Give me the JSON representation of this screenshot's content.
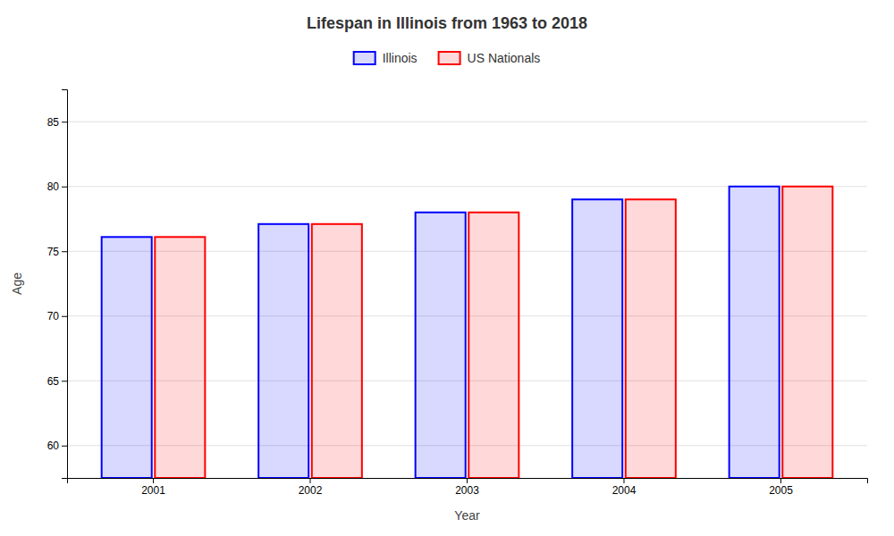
{
  "chart_data": {
    "type": "bar",
    "title": "Lifespan in Illinois from 1963 to 2018",
    "xlabel": "Year",
    "ylabel": "Age",
    "categories": [
      "2001",
      "2002",
      "2003",
      "2004",
      "2005"
    ],
    "series": [
      {
        "name": "Illinois",
        "color": "#0000ff",
        "values": [
          76.1,
          77.1,
          78.0,
          79.0,
          80.0
        ]
      },
      {
        "name": "US Nationals",
        "color": "#ff0000",
        "values": [
          76.1,
          77.1,
          78.0,
          79.0,
          80.0
        ]
      }
    ],
    "ylim": [
      57.5,
      87.5
    ],
    "yticks": [
      60,
      65,
      70,
      75,
      80,
      85
    ],
    "grid": true,
    "legend": "top"
  }
}
